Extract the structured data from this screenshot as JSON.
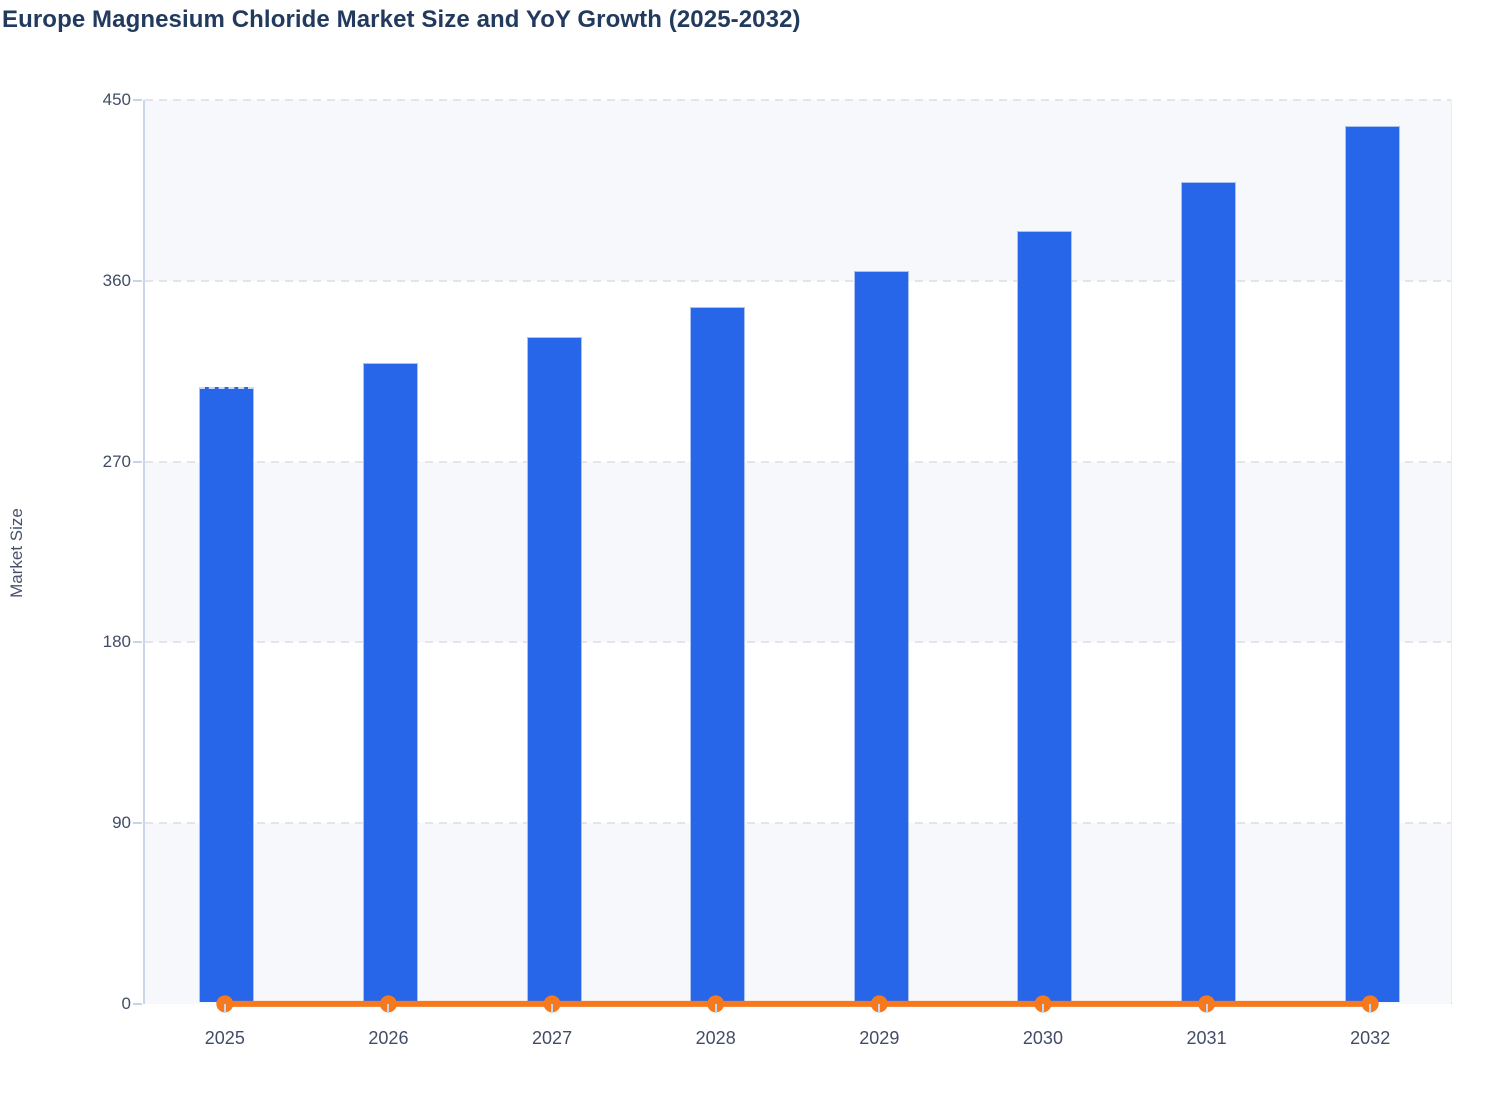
{
  "page": {
    "title": "Europe Magnesium Chloride Market Size and YoY Growth (2025-2032)"
  },
  "colors": {
    "bar": "#2766e9",
    "bar_border": "#a9c2f2",
    "line": "#f6791e",
    "marker": "#f6791e",
    "title_text": "#223a5e",
    "tick_label": "#414d66",
    "axis_title": "#46526b",
    "gridline": "#e2e5eb",
    "band": "#f7f8fb",
    "axis_line": "#c9d3e8"
  },
  "chart_data": {
    "type": "bar",
    "title": "Europe Magnesium Chloride Market Size and YoY Growth (2025-2032)",
    "categories": [
      "2025",
      "2026",
      "2027",
      "2028",
      "2029",
      "2030",
      "2031",
      "2032"
    ],
    "series": [
      {
        "name": "Market Size",
        "type": "bar",
        "values": [
          306,
          318,
          331,
          346,
          364,
          384,
          408,
          436
        ]
      },
      {
        "name": "YoY Growth",
        "type": "line",
        "values": [
          0.04,
          0.039,
          0.041,
          0.045,
          0.052,
          0.055,
          0.063,
          0.069
        ]
      }
    ],
    "xlabel": "",
    "ylabel": "Market Size",
    "ylim": [
      0,
      450
    ],
    "yticks": [
      0,
      90,
      180,
      270,
      360,
      450
    ],
    "grid": "horizontal-dashed",
    "band_fill": "alternating-horizontal",
    "legend": "none"
  }
}
